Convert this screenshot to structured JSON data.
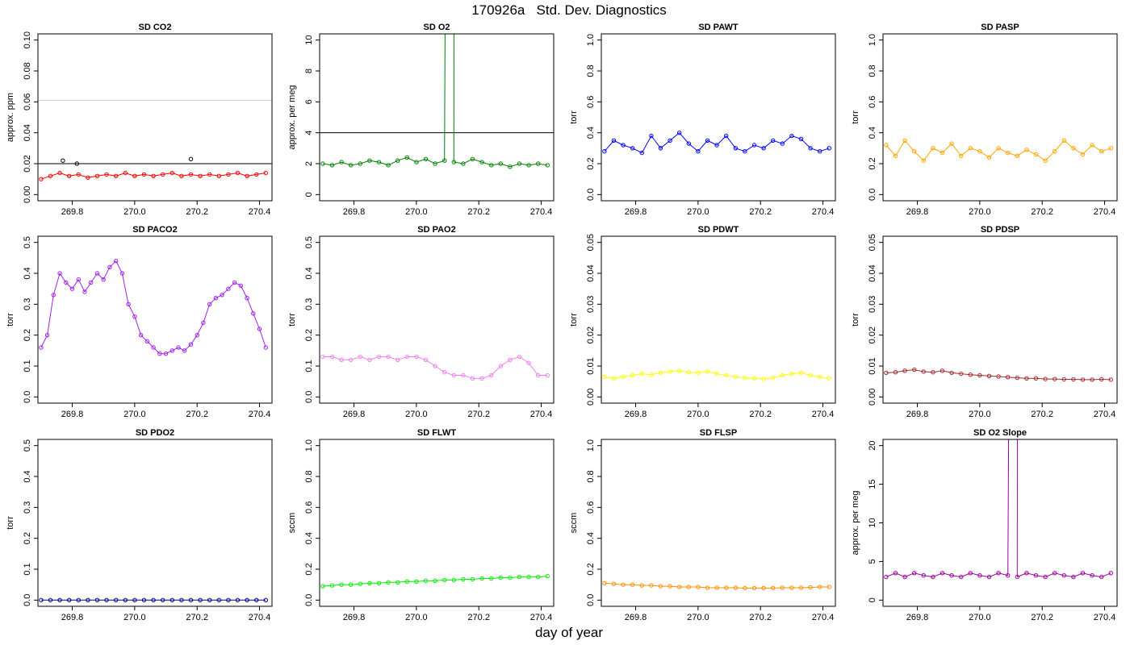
{
  "page_title": "170926a   Std. Dev. Diagnostics",
  "x_axis_label": "day of year",
  "chart_data": [
    {
      "type": "line",
      "title": "SD CO2",
      "ylabel": "approx. ppm",
      "color": "#ff0000",
      "ylim": [
        0,
        0.1
      ],
      "yticks": [
        0.0,
        0.02,
        0.04,
        0.06,
        0.08,
        0.1
      ],
      "ytick_labels": [
        "0.00",
        "0.02",
        "0.04",
        "0.06",
        "0.08",
        "0.10"
      ],
      "xlim": [
        269.69,
        270.44
      ],
      "xticks": [
        269.8,
        270.0,
        270.2,
        270.4
      ],
      "xtick_labels": [
        "269.8",
        "270.0",
        "270.2",
        "270.4"
      ],
      "hlines": [
        {
          "y": 0.02,
          "color": "#000000"
        },
        {
          "y": 0.061,
          "color": "#cccccc"
        }
      ],
      "highlight_color": "#000000",
      "highlight_points": [
        [
          269.77,
          0.022
        ],
        [
          269.815,
          0.02
        ],
        [
          270.18,
          0.023
        ]
      ],
      "x": [
        269.7,
        269.73,
        269.76,
        269.79,
        269.82,
        269.85,
        269.88,
        269.91,
        269.94,
        269.97,
        270.0,
        270.03,
        270.06,
        270.09,
        270.12,
        270.15,
        270.18,
        270.21,
        270.24,
        270.27,
        270.3,
        270.33,
        270.36,
        270.39,
        270.42
      ],
      "y": [
        0.01,
        0.012,
        0.014,
        0.012,
        0.013,
        0.011,
        0.012,
        0.013,
        0.012,
        0.014,
        0.012,
        0.013,
        0.012,
        0.013,
        0.014,
        0.012,
        0.013,
        0.012,
        0.013,
        0.012,
        0.013,
        0.014,
        0.012,
        0.013,
        0.014
      ]
    },
    {
      "type": "line",
      "title": "SD O2",
      "ylabel": "approx. per meg",
      "color": "#007f00",
      "ylim": [
        0,
        10
      ],
      "yticks": [
        0,
        2,
        4,
        6,
        8,
        10
      ],
      "ytick_labels": [
        "0",
        "2",
        "4",
        "6",
        "8",
        "10"
      ],
      "xlim": [
        269.69,
        270.44
      ],
      "xticks": [
        269.8,
        270.0,
        270.2,
        270.4
      ],
      "xtick_labels": [
        "269.8",
        "270.0",
        "270.2",
        "270.4"
      ],
      "hlines": [
        {
          "y": 4,
          "color": "#000000"
        }
      ],
      "spike": {
        "x": 270.12,
        "y": 120
      },
      "x": [
        269.7,
        269.73,
        269.76,
        269.79,
        269.82,
        269.85,
        269.88,
        269.91,
        269.94,
        269.97,
        270.0,
        270.03,
        270.06,
        270.09,
        270.12,
        270.15,
        270.18,
        270.21,
        270.24,
        270.27,
        270.3,
        270.33,
        270.36,
        270.39,
        270.42
      ],
      "y": [
        2.0,
        1.9,
        2.1,
        1.9,
        2.0,
        2.2,
        2.1,
        1.9,
        2.2,
        2.4,
        2.1,
        2.3,
        2.0,
        2.2,
        2.1,
        2.0,
        2.3,
        2.1,
        1.9,
        2.0,
        1.8,
        2.0,
        1.9,
        2.0,
        1.9
      ]
    },
    {
      "type": "line",
      "title": "SD PAWT",
      "ylabel": "torr",
      "color": "#0000ff",
      "ylim": [
        0,
        1
      ],
      "yticks": [
        0.0,
        0.2,
        0.4,
        0.6,
        0.8,
        1.0
      ],
      "ytick_labels": [
        "0.0",
        "0.2",
        "0.4",
        "0.6",
        "0.8",
        "1.0"
      ],
      "xlim": [
        269.69,
        270.44
      ],
      "xticks": [
        269.8,
        270.0,
        270.2,
        270.4
      ],
      "xtick_labels": [
        "269.8",
        "270.0",
        "270.2",
        "270.4"
      ],
      "x": [
        269.7,
        269.73,
        269.76,
        269.79,
        269.82,
        269.85,
        269.88,
        269.91,
        269.94,
        269.97,
        270.0,
        270.03,
        270.06,
        270.09,
        270.12,
        270.15,
        270.18,
        270.21,
        270.24,
        270.27,
        270.3,
        270.33,
        270.36,
        270.39,
        270.42
      ],
      "y": [
        0.28,
        0.35,
        0.32,
        0.3,
        0.27,
        0.38,
        0.3,
        0.35,
        0.4,
        0.33,
        0.28,
        0.35,
        0.32,
        0.38,
        0.3,
        0.28,
        0.32,
        0.3,
        0.35,
        0.33,
        0.38,
        0.36,
        0.3,
        0.28,
        0.3
      ]
    },
    {
      "type": "line",
      "title": "SD PASP",
      "ylabel": "torr",
      "color": "#ffa500",
      "ylim": [
        0,
        1
      ],
      "yticks": [
        0.0,
        0.2,
        0.4,
        0.6,
        0.8,
        1.0
      ],
      "ytick_labels": [
        "0.0",
        "0.2",
        "0.4",
        "0.6",
        "0.8",
        "1.0"
      ],
      "xlim": [
        269.69,
        270.44
      ],
      "xticks": [
        269.8,
        270.0,
        270.2,
        270.4
      ],
      "xtick_labels": [
        "269.8",
        "270.0",
        "270.2",
        "270.4"
      ],
      "x": [
        269.7,
        269.73,
        269.76,
        269.79,
        269.82,
        269.85,
        269.88,
        269.91,
        269.94,
        269.97,
        270.0,
        270.03,
        270.06,
        270.09,
        270.12,
        270.15,
        270.18,
        270.21,
        270.24,
        270.27,
        270.3,
        270.33,
        270.36,
        270.39,
        270.42
      ],
      "y": [
        0.32,
        0.25,
        0.35,
        0.28,
        0.22,
        0.3,
        0.27,
        0.33,
        0.25,
        0.3,
        0.28,
        0.24,
        0.3,
        0.27,
        0.25,
        0.29,
        0.26,
        0.22,
        0.28,
        0.35,
        0.3,
        0.26,
        0.32,
        0.28,
        0.3
      ]
    },
    {
      "type": "line",
      "title": "SD PACO2",
      "ylabel": "torr",
      "color": "#a020f0",
      "ylim": [
        0,
        0.5
      ],
      "yticks": [
        0.0,
        0.1,
        0.2,
        0.3,
        0.4,
        0.5
      ],
      "ytick_labels": [
        "0.0",
        "0.1",
        "0.2",
        "0.3",
        "0.4",
        "0.5"
      ],
      "xlim": [
        269.69,
        270.44
      ],
      "xticks": [
        269.8,
        270.0,
        270.2,
        270.4
      ],
      "xtick_labels": [
        "269.8",
        "270.0",
        "270.2",
        "270.4"
      ],
      "x": [
        269.7,
        269.72,
        269.74,
        269.76,
        269.78,
        269.8,
        269.82,
        269.84,
        269.86,
        269.88,
        269.9,
        269.92,
        269.94,
        269.96,
        269.98,
        270.0,
        270.02,
        270.04,
        270.06,
        270.08,
        270.1,
        270.12,
        270.14,
        270.16,
        270.18,
        270.2,
        270.22,
        270.24,
        270.26,
        270.28,
        270.3,
        270.32,
        270.34,
        270.36,
        270.38,
        270.4,
        270.42
      ],
      "y": [
        0.16,
        0.2,
        0.33,
        0.4,
        0.37,
        0.35,
        0.38,
        0.34,
        0.37,
        0.4,
        0.38,
        0.42,
        0.44,
        0.4,
        0.3,
        0.26,
        0.2,
        0.18,
        0.16,
        0.14,
        0.14,
        0.15,
        0.16,
        0.15,
        0.17,
        0.2,
        0.24,
        0.3,
        0.32,
        0.33,
        0.35,
        0.37,
        0.36,
        0.32,
        0.27,
        0.22,
        0.16
      ]
    },
    {
      "type": "line",
      "title": "SD PAO2",
      "ylabel": "torr",
      "color": "#ee82ee",
      "ylim": [
        0,
        0.5
      ],
      "yticks": [
        0.0,
        0.1,
        0.2,
        0.3,
        0.4,
        0.5
      ],
      "ytick_labels": [
        "0.0",
        "0.1",
        "0.2",
        "0.3",
        "0.4",
        "0.5"
      ],
      "xlim": [
        269.69,
        270.44
      ],
      "xticks": [
        269.8,
        270.0,
        270.2,
        270.4
      ],
      "xtick_labels": [
        "269.8",
        "270.0",
        "270.2",
        "270.4"
      ],
      "x": [
        269.7,
        269.73,
        269.76,
        269.79,
        269.82,
        269.85,
        269.88,
        269.91,
        269.94,
        269.97,
        270.0,
        270.03,
        270.06,
        270.09,
        270.12,
        270.15,
        270.18,
        270.21,
        270.24,
        270.27,
        270.3,
        270.33,
        270.36,
        270.39,
        270.42
      ],
      "y": [
        0.13,
        0.13,
        0.12,
        0.12,
        0.13,
        0.12,
        0.13,
        0.13,
        0.12,
        0.13,
        0.13,
        0.12,
        0.1,
        0.08,
        0.07,
        0.07,
        0.06,
        0.06,
        0.07,
        0.1,
        0.12,
        0.13,
        0.11,
        0.07,
        0.07
      ]
    },
    {
      "type": "line",
      "title": "SD PDWT",
      "ylabel": "torr",
      "color": "#ffff00",
      "ylim": [
        0,
        0.05
      ],
      "yticks": [
        0.0,
        0.01,
        0.02,
        0.03,
        0.04,
        0.05
      ],
      "ytick_labels": [
        "0.00",
        "0.01",
        "0.02",
        "0.03",
        "0.04",
        "0.05"
      ],
      "xlim": [
        269.69,
        270.44
      ],
      "xticks": [
        269.8,
        270.0,
        270.2,
        270.4
      ],
      "xtick_labels": [
        "269.8",
        "270.0",
        "270.2",
        "270.4"
      ],
      "x": [
        269.7,
        269.73,
        269.76,
        269.79,
        269.82,
        269.85,
        269.88,
        269.91,
        269.94,
        269.97,
        270.0,
        270.03,
        270.06,
        270.09,
        270.12,
        270.15,
        270.18,
        270.21,
        270.24,
        270.27,
        270.3,
        270.33,
        270.36,
        270.39,
        270.42
      ],
      "y": [
        0.0065,
        0.006,
        0.0065,
        0.007,
        0.0075,
        0.0072,
        0.0078,
        0.0082,
        0.0085,
        0.008,
        0.0078,
        0.0082,
        0.0075,
        0.007,
        0.0065,
        0.0062,
        0.006,
        0.0058,
        0.0062,
        0.007,
        0.0075,
        0.0078,
        0.007,
        0.0065,
        0.006
      ]
    },
    {
      "type": "line",
      "title": "SD PDSP",
      "ylabel": "torr",
      "color": "#a52a2a",
      "ylim": [
        0,
        0.05
      ],
      "yticks": [
        0.0,
        0.01,
        0.02,
        0.03,
        0.04,
        0.05
      ],
      "ytick_labels": [
        "0.00",
        "0.01",
        "0.02",
        "0.03",
        "0.04",
        "0.05"
      ],
      "xlim": [
        269.69,
        270.44
      ],
      "xticks": [
        269.8,
        270.0,
        270.2,
        270.4
      ],
      "xtick_labels": [
        "269.8",
        "270.0",
        "270.2",
        "270.4"
      ],
      "x": [
        269.7,
        269.73,
        269.76,
        269.79,
        269.82,
        269.85,
        269.88,
        269.91,
        269.94,
        269.97,
        270.0,
        270.03,
        270.06,
        270.09,
        270.12,
        270.15,
        270.18,
        270.21,
        270.24,
        270.27,
        270.3,
        270.33,
        270.36,
        270.39,
        270.42
      ],
      "y": [
        0.0078,
        0.008,
        0.0085,
        0.0088,
        0.0082,
        0.008,
        0.0085,
        0.0078,
        0.0075,
        0.0072,
        0.007,
        0.0068,
        0.0066,
        0.0064,
        0.0062,
        0.006,
        0.006,
        0.0058,
        0.0058,
        0.0057,
        0.0057,
        0.0056,
        0.0056,
        0.0057,
        0.0056
      ]
    },
    {
      "type": "line",
      "title": "SD PDO2",
      "ylabel": "torr",
      "color": "#00008b",
      "ylim": [
        0,
        0.5
      ],
      "yticks": [
        0.0,
        0.1,
        0.2,
        0.3,
        0.4,
        0.5
      ],
      "ytick_labels": [
        "0.0",
        "0.1",
        "0.2",
        "0.3",
        "0.4",
        "0.5"
      ],
      "xlim": [
        269.69,
        270.44
      ],
      "xticks": [
        269.8,
        270.0,
        270.2,
        270.4
      ],
      "xtick_labels": [
        "269.8",
        "270.0",
        "270.2",
        "270.4"
      ],
      "x": [
        269.7,
        269.73,
        269.76,
        269.79,
        269.82,
        269.85,
        269.88,
        269.91,
        269.94,
        269.97,
        270.0,
        270.03,
        270.06,
        270.09,
        270.12,
        270.15,
        270.18,
        270.21,
        270.24,
        270.27,
        270.3,
        270.33,
        270.36,
        270.39,
        270.42
      ],
      "y": [
        0.0,
        0.0,
        0.0,
        0.0,
        0.0,
        0.0,
        0.0,
        0.0,
        0.0,
        0.0,
        0.0,
        0.0,
        0.0,
        0.0,
        0.0,
        0.0,
        0.0,
        0.0,
        0.0,
        0.0,
        0.0,
        0.0,
        0.0,
        0.0,
        0.0
      ]
    },
    {
      "type": "line",
      "title": "SD FLWT",
      "ylabel": "sccm",
      "color": "#00ee00",
      "ylim": [
        0,
        1
      ],
      "yticks": [
        0.0,
        0.2,
        0.4,
        0.6,
        0.8,
        1.0
      ],
      "ytick_labels": [
        "0.0",
        "0.2",
        "0.4",
        "0.6",
        "0.8",
        "1.0"
      ],
      "xlim": [
        269.69,
        270.44
      ],
      "xticks": [
        269.8,
        270.0,
        270.2,
        270.4
      ],
      "xtick_labels": [
        "269.8",
        "270.0",
        "270.2",
        "270.4"
      ],
      "x": [
        269.7,
        269.73,
        269.76,
        269.79,
        269.82,
        269.85,
        269.88,
        269.91,
        269.94,
        269.97,
        270.0,
        270.03,
        270.06,
        270.09,
        270.12,
        270.15,
        270.18,
        270.21,
        270.24,
        270.27,
        270.3,
        270.33,
        270.36,
        270.39,
        270.42
      ],
      "y": [
        0.09,
        0.095,
        0.1,
        0.1,
        0.105,
        0.11,
        0.11,
        0.115,
        0.115,
        0.12,
        0.12,
        0.125,
        0.125,
        0.13,
        0.13,
        0.135,
        0.135,
        0.14,
        0.14,
        0.145,
        0.145,
        0.15,
        0.15,
        0.15,
        0.155
      ]
    },
    {
      "type": "line",
      "title": "SD FLSP",
      "ylabel": "sccm",
      "color": "#ff8c00",
      "ylim": [
        0,
        1
      ],
      "yticks": [
        0.0,
        0.2,
        0.4,
        0.6,
        0.8,
        1.0
      ],
      "ytick_labels": [
        "0.0",
        "0.2",
        "0.4",
        "0.6",
        "0.8",
        "1.0"
      ],
      "xlim": [
        269.69,
        270.44
      ],
      "xticks": [
        269.8,
        270.0,
        270.2,
        270.4
      ],
      "xtick_labels": [
        "269.8",
        "270.0",
        "270.2",
        "270.4"
      ],
      "x": [
        269.7,
        269.73,
        269.76,
        269.79,
        269.82,
        269.85,
        269.88,
        269.91,
        269.94,
        269.97,
        270.0,
        270.03,
        270.06,
        270.09,
        270.12,
        270.15,
        270.18,
        270.21,
        270.24,
        270.27,
        270.3,
        270.33,
        270.36,
        270.39,
        270.42
      ],
      "y": [
        0.11,
        0.105,
        0.1,
        0.1,
        0.095,
        0.095,
        0.09,
        0.09,
        0.085,
        0.085,
        0.085,
        0.08,
        0.08,
        0.08,
        0.08,
        0.078,
        0.078,
        0.078,
        0.078,
        0.08,
        0.08,
        0.08,
        0.082,
        0.085,
        0.085
      ]
    },
    {
      "type": "line",
      "title": "SD O2 Slope",
      "ylabel": "approx. per meg",
      "color": "#9b009b",
      "ylim": [
        0,
        20
      ],
      "yticks": [
        0,
        5,
        10,
        15,
        20
      ],
      "ytick_labels": [
        "0",
        "5",
        "10",
        "15",
        "20"
      ],
      "xlim": [
        269.69,
        270.44
      ],
      "xticks": [
        269.8,
        270.0,
        270.2,
        270.4
      ],
      "xtick_labels": [
        "269.8",
        "270.0",
        "270.2",
        "270.4"
      ],
      "spike": {
        "x": 270.12,
        "y": 200
      },
      "x": [
        269.7,
        269.73,
        269.76,
        269.79,
        269.82,
        269.85,
        269.88,
        269.91,
        269.94,
        269.97,
        270.0,
        270.03,
        270.06,
        270.09,
        270.12,
        270.15,
        270.18,
        270.21,
        270.24,
        270.27,
        270.3,
        270.33,
        270.36,
        270.39,
        270.42
      ],
      "y": [
        3.0,
        3.5,
        3.0,
        3.5,
        3.2,
        3.0,
        3.5,
        3.2,
        3.0,
        3.5,
        3.2,
        3.0,
        3.5,
        3.2,
        3.0,
        3.5,
        3.2,
        3.0,
        3.5,
        3.2,
        3.0,
        3.5,
        3.2,
        3.0,
        3.5
      ]
    }
  ]
}
